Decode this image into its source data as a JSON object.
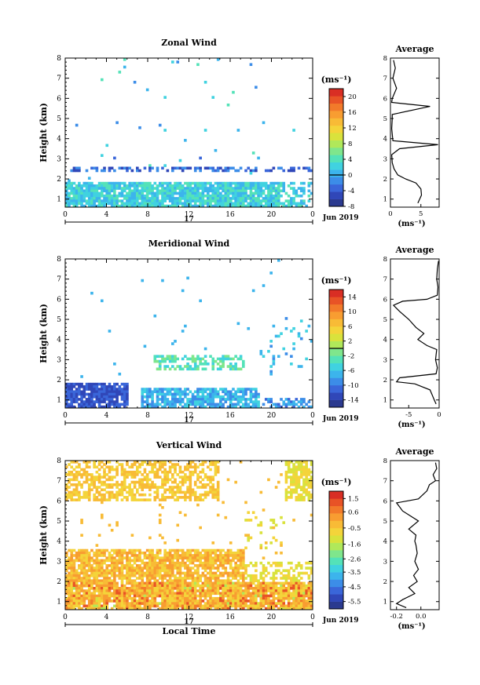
{
  "panels": [
    {
      "id": "zonal",
      "title": "Zonal Wind",
      "avg_title": "Average",
      "y_label": "Height (km)",
      "unit": "(ms⁻¹)",
      "x_ticks": [
        "0",
        "4",
        "8",
        "12",
        "16",
        "20",
        "0"
      ],
      "y_ticks": [
        "1",
        "2",
        "3",
        "4",
        "5",
        "6",
        "7",
        "8"
      ],
      "day_label": "17",
      "date_label": "Jun 2019",
      "colorbar": {
        "min": -8,
        "max": 22,
        "ticks": [
          "20",
          "16",
          "12",
          "8",
          "4",
          "0",
          "-4",
          "-8"
        ],
        "zero_line": 0
      },
      "avg": {
        "x_ticks": [
          "0",
          "5"
        ],
        "xlim": [
          0,
          8
        ],
        "unit": "(ms⁻¹)"
      }
    },
    {
      "id": "meridional",
      "title": "Meridional Wind",
      "avg_title": "Average",
      "y_label": "Height (km)",
      "unit": "(ms⁻¹)",
      "x_ticks": [
        "0",
        "4",
        "8",
        "12",
        "16",
        "20",
        "0"
      ],
      "y_ticks": [
        "1",
        "2",
        "3",
        "4",
        "5",
        "6",
        "7",
        "8"
      ],
      "day_label": "17",
      "date_label": "Jun 2019",
      "colorbar": {
        "min": -16,
        "max": 16,
        "ticks": [
          "14",
          "10",
          "6",
          "2",
          "-2",
          "-6",
          "-10",
          "-14"
        ],
        "zero_line": 0
      },
      "avg": {
        "x_ticks": [
          "-5",
          "0"
        ],
        "xlim": [
          -8,
          0
        ],
        "unit": "(ms⁻¹)"
      }
    },
    {
      "id": "vertical",
      "title": "Vertical Wind",
      "avg_title": "Average",
      "y_label": "Height (km)",
      "x_label": "Local Time",
      "unit": "(ms⁻¹)",
      "x_ticks": [
        "0",
        "4",
        "8",
        "12",
        "16",
        "20",
        "0"
      ],
      "y_ticks": [
        "1",
        "2",
        "3",
        "4",
        "5",
        "6",
        "7",
        "8"
      ],
      "day_label": "17",
      "date_label": "Jun 2019",
      "colorbar": {
        "min": -6,
        "max": 2,
        "ticks": [
          "1.5",
          "0.6",
          "-0.5",
          "-1.6",
          "-2.6",
          "-3.5",
          "-4.5",
          "-5.5"
        ]
      },
      "avg": {
        "x_ticks": [
          "-0.2",
          "0.0"
        ],
        "xlim": [
          -0.25,
          0.15
        ],
        "unit": "(ms⁻¹)"
      }
    }
  ],
  "chart_data": [
    {
      "type": "heatmap",
      "title": "Zonal Wind",
      "ylabel": "Height (km)",
      "xlabel": "",
      "xlim_hours": [
        0,
        24
      ],
      "ylim_km": [
        0.6,
        8
      ],
      "typical_values": "mostly 4 to 10 ms⁻¹ below 2 km; near 0 around 2.6 km"
    },
    {
      "type": "line",
      "title": "Average",
      "xlabel": "(ms⁻¹)",
      "ylabel": "Height (km)",
      "xlim": [
        0,
        8
      ],
      "x": [
        4.5,
        4.8,
        5.1,
        5.0,
        4.2,
        2.5,
        1.2,
        0.6,
        0.3,
        0.2,
        1.5,
        7.8,
        0.4,
        0.2,
        0.3,
        0.3,
        6.5,
        0.2,
        0.3,
        1.0,
        0.4,
        0.8,
        0.5
      ],
      "y": [
        0.8,
        1.0,
        1.2,
        1.5,
        1.8,
        2.0,
        2.2,
        2.5,
        2.8,
        3.2,
        3.5,
        3.7,
        3.9,
        4.5,
        5.0,
        5.2,
        5.6,
        5.8,
        6.0,
        6.5,
        7.0,
        7.5,
        7.9
      ]
    },
    {
      "type": "heatmap",
      "title": "Meridional Wind",
      "ylabel": "Height (km)",
      "xlabel": "",
      "xlim_hours": [
        0,
        24
      ],
      "ylim_km": [
        0.6,
        8
      ],
      "typical_values": "mostly -12 to -2 ms⁻¹ below 1.5 km; near 0 at 2.6-3.2 km"
    },
    {
      "type": "line",
      "title": "Average",
      "xlabel": "(ms⁻¹)",
      "ylabel": "Height (km)",
      "xlim": [
        -8,
        0
      ],
      "x": [
        -0.5,
        -0.8,
        -1.5,
        -4.0,
        -7.0,
        -6.5,
        -0.5,
        -0.3,
        -0.6,
        -0.4,
        -2.0,
        -3.5,
        -2.5,
        -3.8,
        -5.0,
        -6.5,
        -7.5,
        -6.0,
        -2.0,
        -0.3,
        -0.2,
        -0.4,
        -0.3,
        -0.1
      ],
      "y": [
        0.8,
        1.0,
        1.5,
        1.8,
        1.9,
        2.1,
        2.3,
        2.6,
        3.0,
        3.5,
        3.7,
        4.0,
        4.3,
        4.6,
        5.0,
        5.4,
        5.7,
        5.9,
        6.0,
        6.2,
        6.6,
        7.0,
        7.5,
        7.9
      ]
    },
    {
      "type": "heatmap",
      "title": "Vertical Wind",
      "ylabel": "Height (km)",
      "xlabel": "Local Time",
      "xlim_hours": [
        0,
        24
      ],
      "ylim_km": [
        0.6,
        8
      ],
      "typical_values": "mostly -0.5 to 0.6 ms⁻¹ (yellow/orange)"
    },
    {
      "type": "line",
      "title": "Average",
      "xlabel": "(ms⁻¹)",
      "ylabel": "Height (km)",
      "xlim": [
        -0.25,
        0.15
      ],
      "x": [
        -0.12,
        -0.2,
        -0.15,
        -0.05,
        -0.1,
        -0.03,
        -0.06,
        -0.02,
        -0.05,
        -0.03,
        -0.04,
        -0.05,
        -0.04,
        -0.1,
        -0.02,
        -0.15,
        -0.2,
        -0.02,
        0.05,
        0.07,
        0.12,
        0.1,
        0.13,
        0.12
      ],
      "y": [
        0.7,
        0.9,
        1.1,
        1.4,
        1.7,
        2.0,
        2.3,
        2.6,
        3.0,
        3.4,
        3.8,
        4.0,
        4.3,
        4.6,
        5.0,
        5.5,
        5.9,
        6.1,
        6.5,
        6.8,
        7.0,
        7.3,
        7.6,
        7.9
      ]
    }
  ],
  "palette": [
    "#2b3a8f",
    "#3047b8",
    "#3a66d9",
    "#3c8de8",
    "#3cb4ec",
    "#40d2e0",
    "#54e2b8",
    "#7fe68c",
    "#b0e85a",
    "#d9e23c",
    "#f4d43a",
    "#f8bb36",
    "#f89d31",
    "#f27a2a",
    "#e85326",
    "#d92e24"
  ]
}
